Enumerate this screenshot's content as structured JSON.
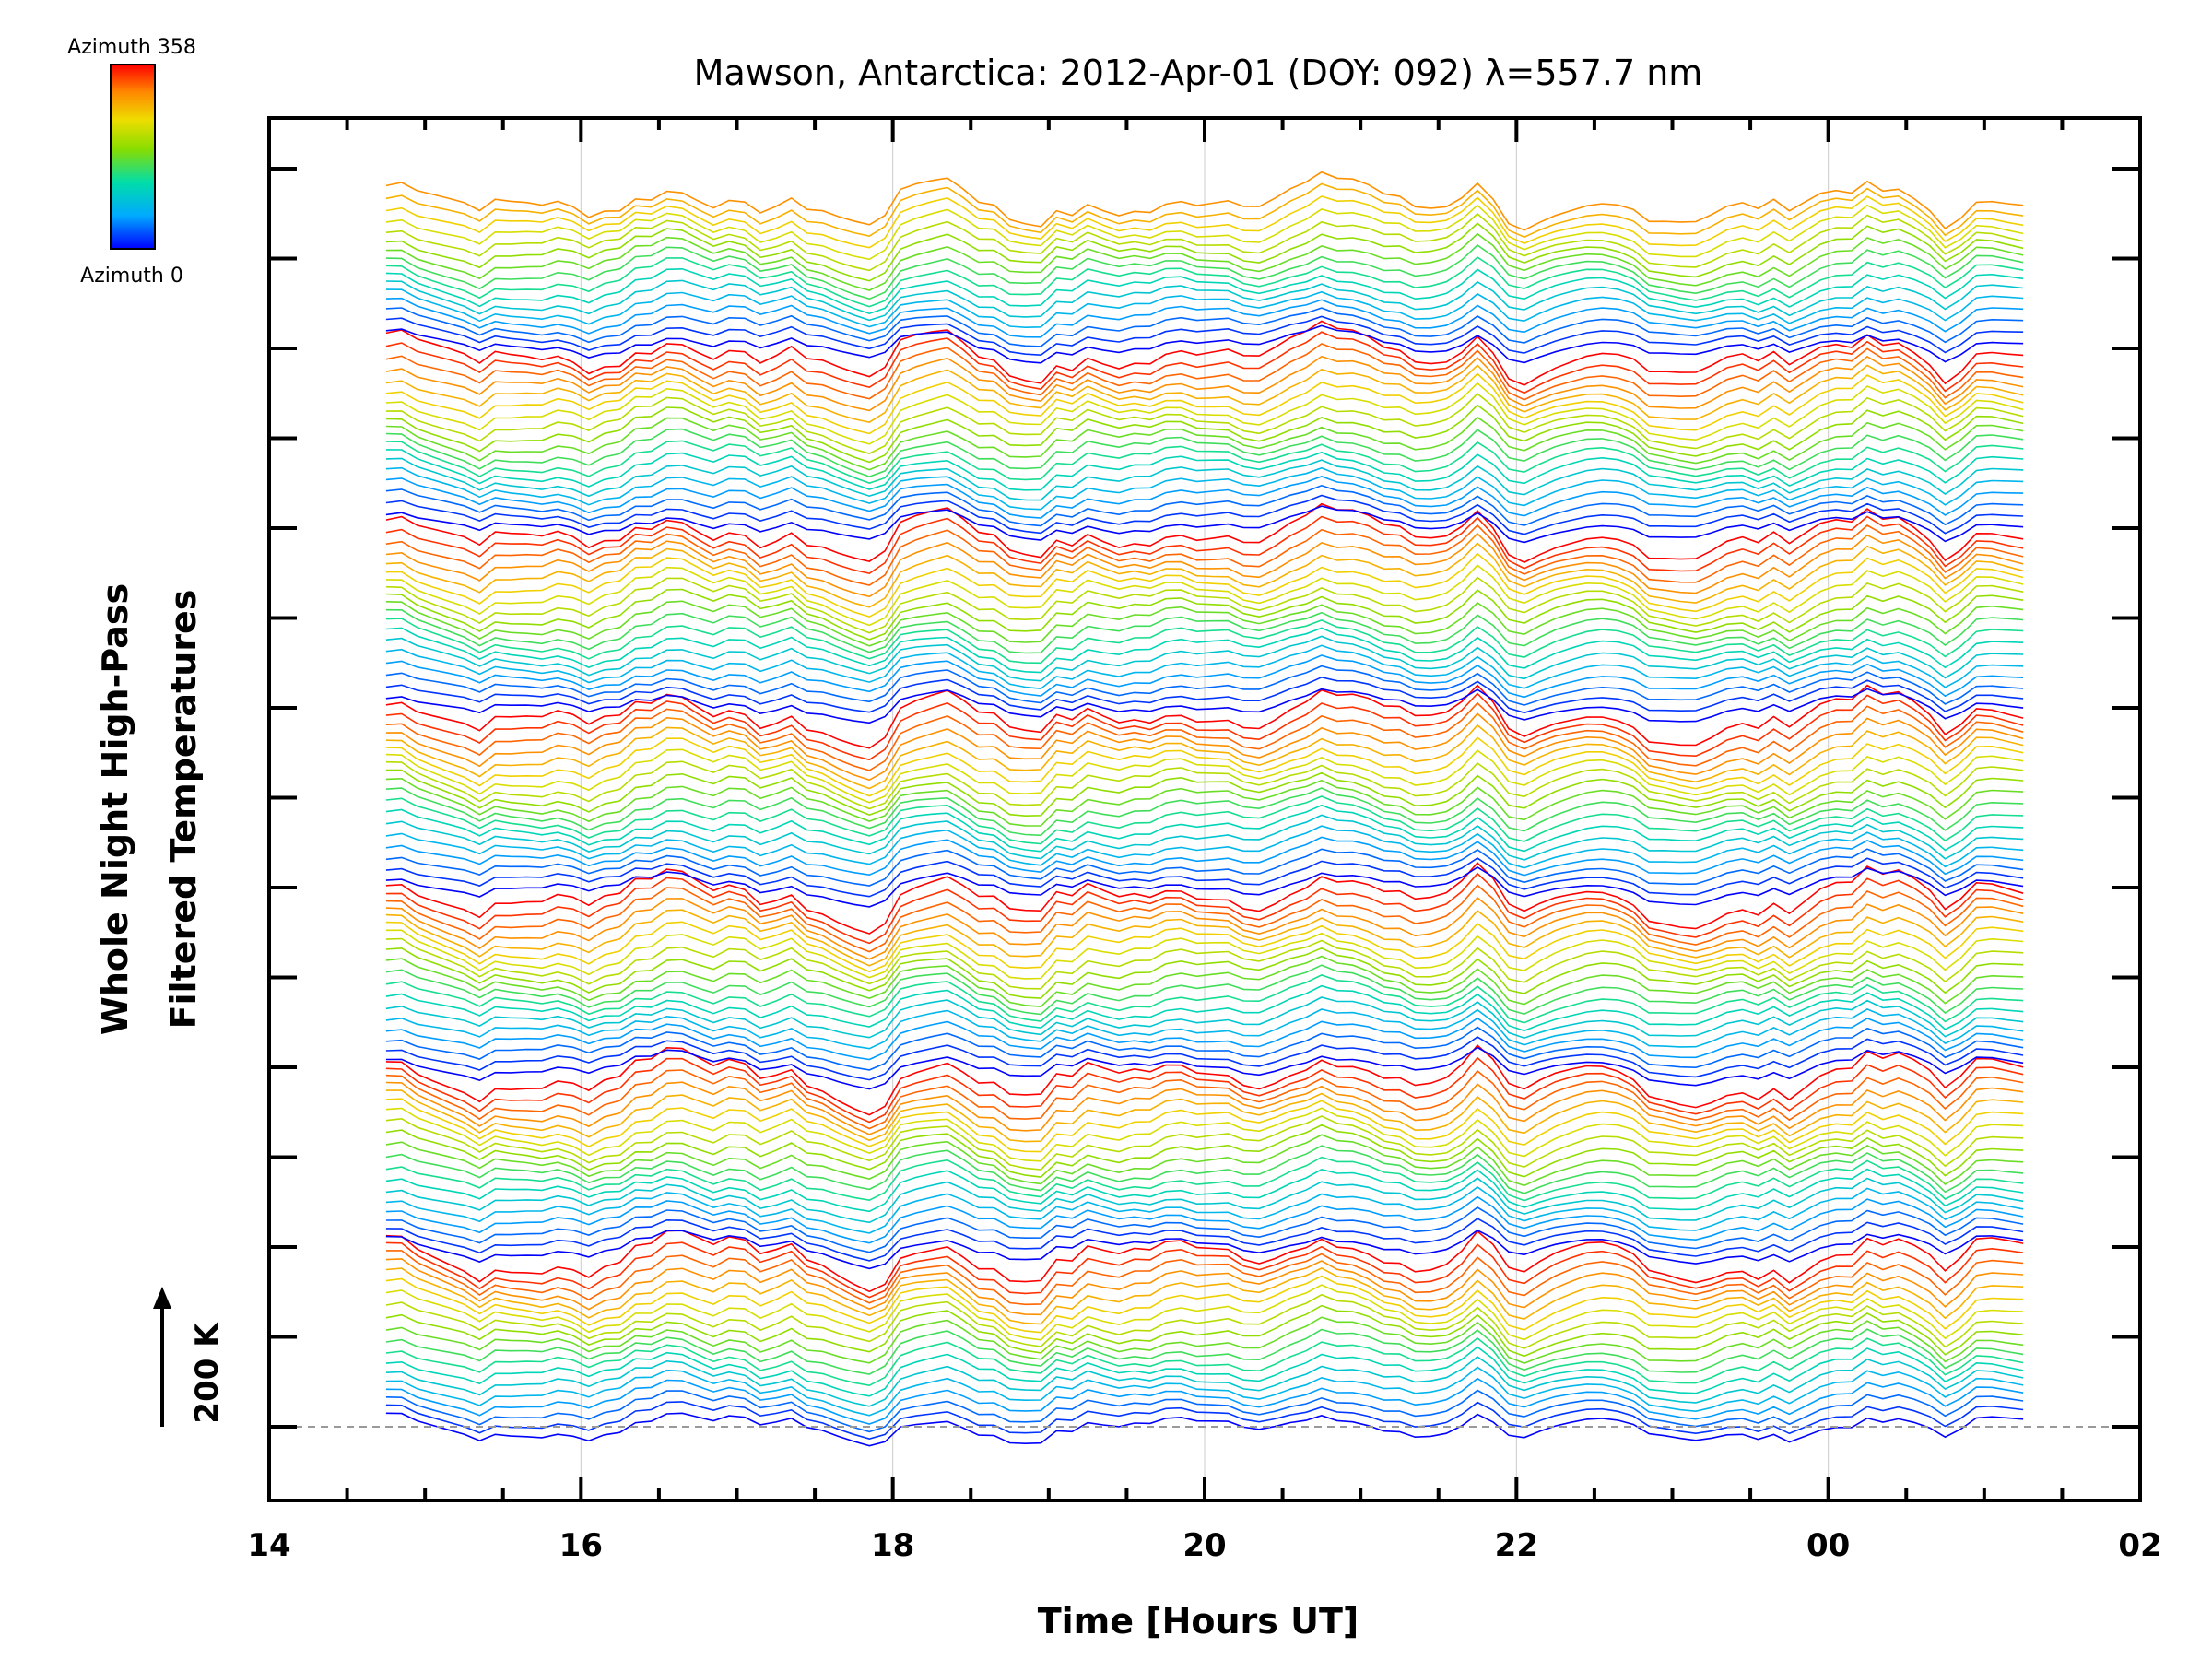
{
  "chart_data": {
    "type": "line",
    "title": "Mawson, Antarctica: 2012-Apr-01 (DOY: 092) λ=557.7 nm",
    "xlabel": "Time [Hours UT]",
    "ylabel_line1": "Whole Night High-Pass",
    "ylabel_line2": "Filtered Temperatures",
    "x_ticks": [
      "14",
      "16",
      "18",
      "20",
      "22",
      "00",
      "02"
    ],
    "xlim": [
      14,
      26
    ],
    "x_start": 14.75,
    "x_end": 25.3,
    "grid": true,
    "scale_bar": "200 K",
    "legend": {
      "top_label": "Azimuth 358",
      "bottom_label": "Azimuth 0",
      "colormap": [
        "#0000ff",
        "#00aaff",
        "#00ddaa",
        "#88dd00",
        "#eedd00",
        "#ff8800",
        "#ff0000"
      ],
      "placement": "top-left"
    },
    "series_count": 130,
    "blocks": 7,
    "colors": {
      "frame": "#000000",
      "grid": "#cccccc",
      "baseline": "#999999"
    }
  }
}
